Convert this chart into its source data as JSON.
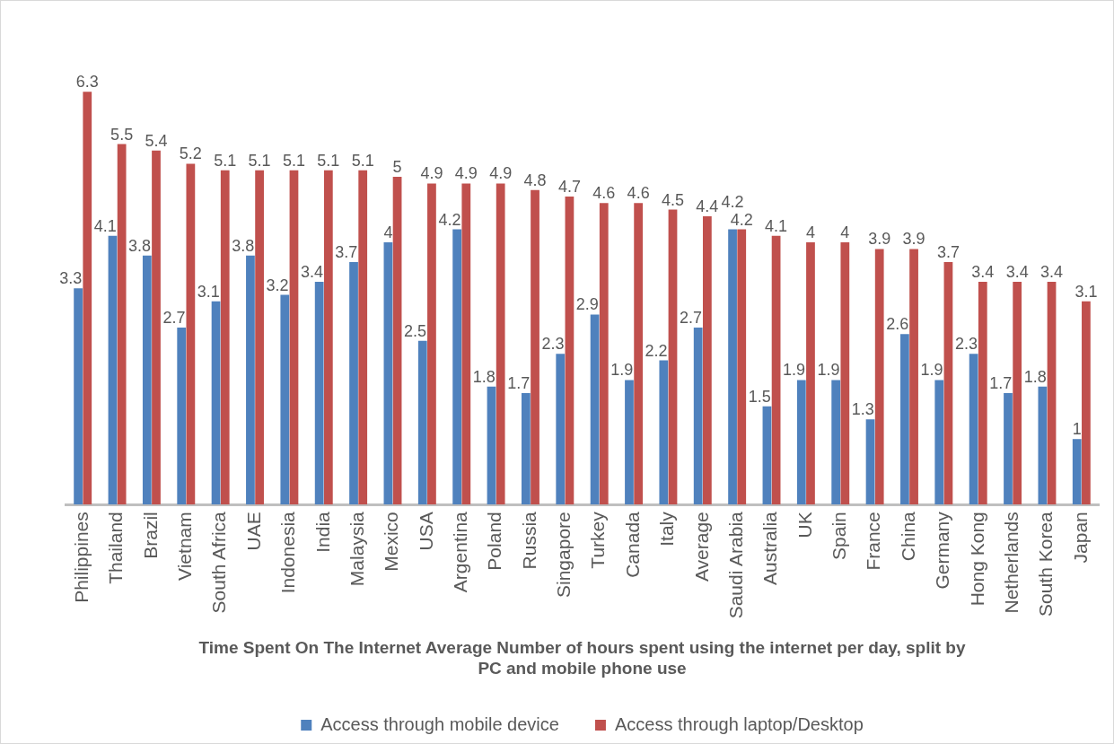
{
  "chart_data": {
    "type": "bar",
    "title": "Time Spent On The Internet Average Number of hours spent using the internet per day, split by PC and mobile phone use",
    "categories": [
      "Philippines",
      "Thailand",
      "Brazil",
      "Vietnam",
      "South Africa",
      "UAE",
      "Indonesia",
      "India",
      "Malaysia",
      "Mexico",
      "USA",
      "Argentina",
      "Poland",
      "Russia",
      "Singapore",
      "Turkey",
      "Canada",
      "Italy",
      "Average",
      "Saudi Arabia",
      "Australia",
      "UK",
      "Spain",
      "France",
      "China",
      "Germany",
      "Hong Kong",
      "Netherlands",
      "South Korea",
      "Japan"
    ],
    "series": [
      {
        "name": "Access through mobile device",
        "color": "#4f81bd",
        "values": [
          3.3,
          4.1,
          3.8,
          2.7,
          3.1,
          3.8,
          3.2,
          3.4,
          3.7,
          4,
          2.5,
          4.2,
          1.8,
          1.7,
          2.3,
          2.9,
          1.9,
          2.2,
          2.7,
          4.2,
          1.5,
          1.9,
          1.9,
          1.3,
          2.6,
          1.9,
          2.3,
          1.7,
          1.8,
          1
        ]
      },
      {
        "name": "Access through laptop/Desktop",
        "color": "#c0504d",
        "values": [
          6.3,
          5.5,
          5.4,
          5.2,
          5.1,
          5.1,
          5.1,
          5.1,
          5.1,
          5,
          4.9,
          4.9,
          4.9,
          4.8,
          4.7,
          4.6,
          4.6,
          4.5,
          4.4,
          4.2,
          4.1,
          4,
          4,
          3.9,
          3.9,
          3.7,
          3.4,
          3.4,
          3.4,
          3.1
        ]
      }
    ],
    "data_labels": true,
    "legend": "bottom"
  }
}
